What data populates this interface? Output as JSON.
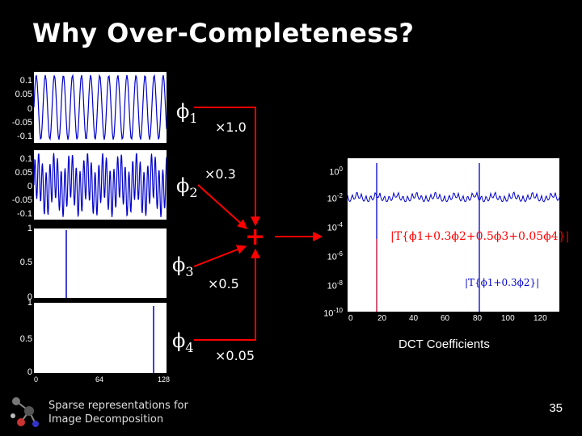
{
  "title": "Why Over-Completeness?",
  "left_panels": {
    "panel1_ticks": [
      "0.1",
      "0.05",
      "0",
      "-0.05",
      "-0.1"
    ],
    "panel2_ticks": [
      "0.1",
      "0.05",
      "0",
      "-0.05",
      "-0.1"
    ],
    "panel3_ticks": [
      "1",
      "0.5",
      "0"
    ],
    "panel4_ticks": [
      "1",
      "0.5",
      "0"
    ],
    "x_ticks": [
      "0",
      "64",
      "128"
    ]
  },
  "atoms": [
    {
      "symbol": "ϕ",
      "index": "1",
      "coefficient": "×1.0"
    },
    {
      "symbol": "ϕ",
      "index": "2",
      "coefficient": "×0.3"
    },
    {
      "symbol": "ϕ",
      "index": "3",
      "coefficient": "×0.5"
    },
    {
      "symbol": "ϕ",
      "index": "4",
      "coefficient": "×0.05"
    }
  ],
  "sum_symbol": "+",
  "right_plot": {
    "y_ticks": [
      "10",
      "10",
      "10",
      "10",
      "10",
      "10"
    ],
    "y_exponents": [
      "0",
      "-2",
      "-4",
      "-6",
      "-8",
      "-10"
    ],
    "x_ticks": [
      "0",
      "20",
      "40",
      "60",
      "80",
      "100",
      "120"
    ],
    "xlabel": "DCT Coefficients",
    "annotation_1": "|T{ϕ1+0.3ϕ2+0.5ϕ3+0.05ϕ4}|",
    "annotation_2": "|T{ϕ1+0.3ϕ2}|"
  },
  "footer": {
    "line1": "Sparse representations for",
    "line2": "Image Decomposition"
  },
  "page_number": "35",
  "colors": {
    "signal": "#0000cc",
    "arrow": "#ff0000",
    "panel_bg": "#ffffff",
    "background": "#000000"
  },
  "icons": [
    "molecule-logo-icon"
  ]
}
